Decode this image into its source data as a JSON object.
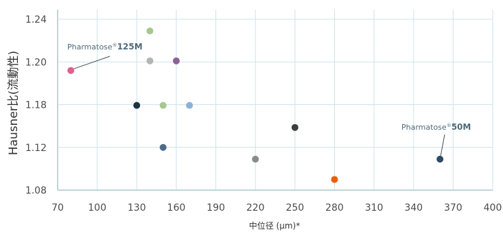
{
  "chart_data": {
    "type": "scatter",
    "xlabel": "中位径 (µm)*",
    "ylabel": "Hausner比(流動性)",
    "x_ticks": [
      70,
      100,
      130,
      160,
      190,
      220,
      250,
      280,
      310,
      340,
      370,
      400
    ],
    "y_ticks": [
      "1.08",
      "1.12",
      "1.18",
      "1.20",
      "1.24"
    ],
    "xlim": [
      70,
      400
    ],
    "grid": true,
    "points": [
      {
        "x": 80,
        "y": 1.196,
        "color": "#e0608a"
      },
      {
        "x": 130,
        "y": 1.179,
        "color": "#1f3340"
      },
      {
        "x": 140,
        "y": 1.229,
        "color": "#a6c88f"
      },
      {
        "x": 140,
        "y": 1.201,
        "color": "#b4b4b4"
      },
      {
        "x": 150,
        "y": 1.179,
        "color": "#a6c88f"
      },
      {
        "x": 150,
        "y": 1.12,
        "color": "#4b6b8a"
      },
      {
        "x": 160,
        "y": 1.201,
        "color": "#8e6197"
      },
      {
        "x": 170,
        "y": 1.179,
        "color": "#8ab4d6"
      },
      {
        "x": 220,
        "y": 1.109,
        "color": "#8a8a8a"
      },
      {
        "x": 250,
        "y": 1.148,
        "color": "#3e3e3e"
      },
      {
        "x": 280,
        "y": 1.09,
        "color": "#e8600c"
      },
      {
        "x": 360,
        "y": 1.109,
        "color": "#2f4a63"
      }
    ],
    "annotations": [
      {
        "prefix": "Pharmatose",
        "mark": "®",
        "bold": "125M",
        "point_index": 0
      },
      {
        "prefix": "Pharmatose",
        "mark": "®",
        "bold": "50M",
        "point_index": 11
      }
    ]
  },
  "colors": {
    "grid": "#cfe3e8",
    "axis": "#a9c9cf",
    "annotation": "#4d6a7a",
    "leader": "#3a4f5c"
  }
}
